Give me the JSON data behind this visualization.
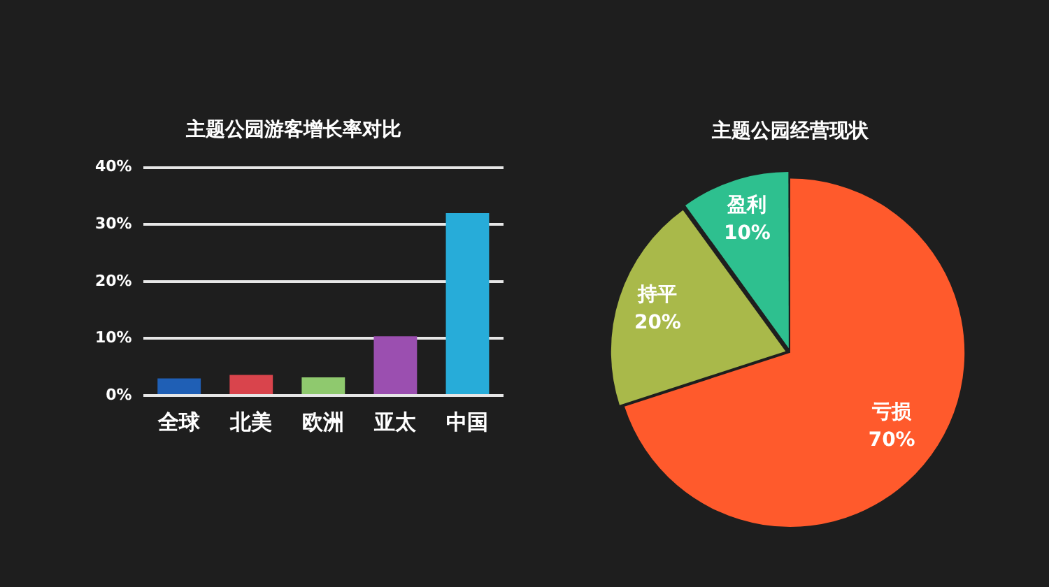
{
  "chart_data": [
    {
      "type": "bar",
      "title": "主题公园游客增长率对比",
      "categories": [
        "全球",
        "北美",
        "欧洲",
        "亚太",
        "中国"
      ],
      "values": [
        3,
        3.6,
        3.2,
        10.4,
        32
      ],
      "colors": [
        "#1f5fb5",
        "#d9444c",
        "#8fc96e",
        "#9b4fb0",
        "#27acd9"
      ],
      "ylim": [
        0,
        40
      ],
      "yticks": [
        {
          "value": 0,
          "label": "0%"
        },
        {
          "value": 10,
          "label": "10%"
        },
        {
          "value": 20,
          "label": "20%"
        },
        {
          "value": 30,
          "label": "30%"
        },
        {
          "value": 40,
          "label": "40%"
        }
      ],
      "grid": "y",
      "legend": false
    },
    {
      "type": "pie",
      "title": "主题公园经营现状",
      "categories": [
        "亏损",
        "持平",
        "盈利"
      ],
      "values": [
        70,
        20,
        10
      ],
      "colors": [
        "#ff5a2c",
        "#a9b94a",
        "#2ec08f"
      ],
      "value_labels": [
        "70%",
        "20%",
        "10%"
      ],
      "legend": false
    }
  ]
}
